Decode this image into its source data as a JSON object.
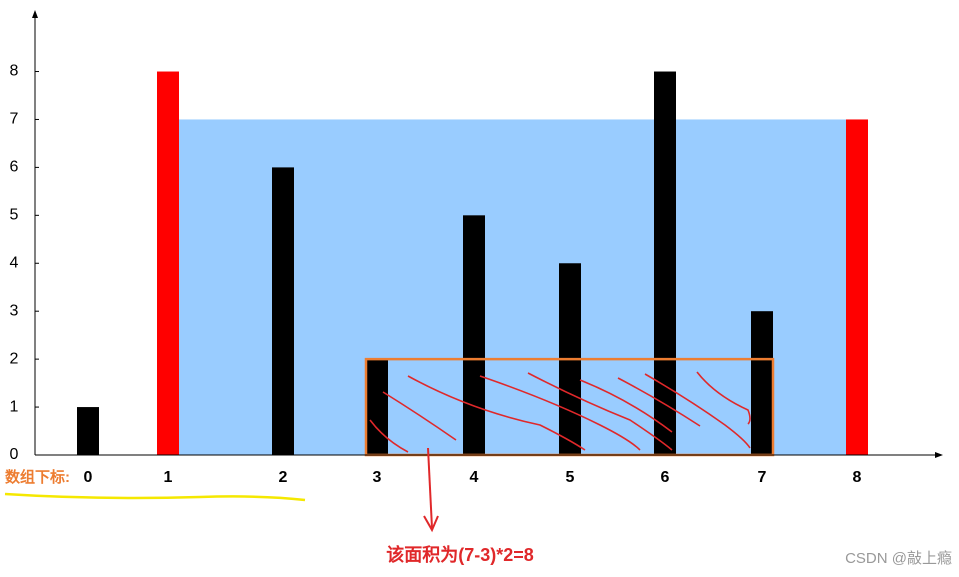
{
  "chart_data": {
    "type": "bar",
    "categories": [
      "0",
      "1",
      "2",
      "3",
      "4",
      "5",
      "6",
      "7",
      "8"
    ],
    "values": [
      1,
      8,
      6,
      2,
      5,
      4,
      8,
      3,
      7
    ],
    "colors": [
      "#000000",
      "#ff0000",
      "#000000",
      "#000000",
      "#000000",
      "#000000",
      "#000000",
      "#000000",
      "#ff0000"
    ],
    "ylim": [
      0,
      9.2
    ],
    "yticks": [
      0,
      1,
      2,
      3,
      4,
      5,
      6,
      7,
      8
    ],
    "x_axis_label": "数组下标:",
    "container": {
      "left": 1,
      "right": 8,
      "height": 7,
      "color": "#99ccff"
    },
    "box": {
      "left": 3,
      "right": 7,
      "height": 2,
      "color": "#ed7d31"
    },
    "annotation": "该面积为(7-3)*2=8",
    "watermark": "CSDN @敲上瘾"
  }
}
